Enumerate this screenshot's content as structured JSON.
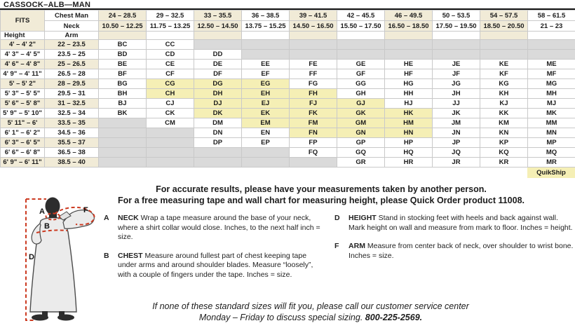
{
  "title": "CASSOCK–ALB—MAN",
  "table": {
    "fits_label": "FITS",
    "chest_label": "Chest Man",
    "neck_label": "Neck",
    "height_label": "Height",
    "arm_label": "Arm",
    "chest_ranges": [
      "24 – 28.5",
      "29 – 32.5",
      "33 – 35.5",
      "36 – 38.5",
      "39 – 41.5",
      "42 – 45.5",
      "46 – 49.5",
      "50 – 53.5",
      "54 – 57.5",
      "58 – 61.5"
    ],
    "neck_ranges": [
      "10.50 – 12.25",
      "11.75 – 13.25",
      "12.50 – 14.50",
      "13.75 – 15.25",
      "14.50 – 16.50",
      "15.50 – 17.50",
      "16.50 – 18.50",
      "17.50 – 19.50",
      "18.50 – 20.50",
      "21 – 23"
    ],
    "rows": [
      {
        "height": "4' – 4' 2\"",
        "arm": "22 – 23.5",
        "codes": [
          "BC",
          "CC",
          "",
          "",
          "",
          "",
          "",
          "",
          "",
          ""
        ],
        "states": "..gggggggg"
      },
      {
        "height": "4' 3\" – 4' 5\"",
        "arm": "23.5 – 25",
        "codes": [
          "BD",
          "CD",
          "DD",
          "",
          "",
          "",
          "",
          "",
          "",
          ""
        ],
        "states": "...ggggggg"
      },
      {
        "height": "4' 6\" – 4' 8\"",
        "arm": "25 – 26.5",
        "codes": [
          "BE",
          "CE",
          "DE",
          "EE",
          "FE",
          "GE",
          "HE",
          "JE",
          "KE",
          "ME"
        ],
        "states": ".........."
      },
      {
        "height": "4' 9\" – 4' 11\"",
        "arm": "26.5 – 28",
        "codes": [
          "BF",
          "CF",
          "DF",
          "EF",
          "FF",
          "GF",
          "HF",
          "JF",
          "KF",
          "MF"
        ],
        "states": ".........."
      },
      {
        "height": "5' – 5' 2\"",
        "arm": "28 – 29.5",
        "codes": [
          "BG",
          "CG",
          "DG",
          "EG",
          "FG",
          "GG",
          "HG",
          "JG",
          "KG",
          "MG"
        ],
        "states": ".yyy......"
      },
      {
        "height": "5' 3\" – 5' 5\"",
        "arm": "29.5 – 31",
        "codes": [
          "BH",
          "CH",
          "DH",
          "EH",
          "FH",
          "GH",
          "HH",
          "JH",
          "KH",
          "MH"
        ],
        "states": ".yyyy....."
      },
      {
        "height": "5' 6\" – 5' 8\"",
        "arm": "31 – 32.5",
        "codes": [
          "BJ",
          "CJ",
          "DJ",
          "EJ",
          "FJ",
          "GJ",
          "HJ",
          "JJ",
          "KJ",
          "MJ"
        ],
        "states": "..yyyy...."
      },
      {
        "height": "5' 9\" – 5' 10\"",
        "arm": "32.5 – 34",
        "codes": [
          "BK",
          "CK",
          "DK",
          "EK",
          "FK",
          "GK",
          "HK",
          "JK",
          "KK",
          "MK"
        ],
        "states": "..yyyyy..."
      },
      {
        "height": "5' 11\" – 6'",
        "arm": "33.5 – 35",
        "codes": [
          "",
          "CM",
          "DM",
          "EM",
          "FM",
          "GM",
          "HM",
          "JM",
          "KM",
          "MM"
        ],
        "states": "g..yyyy..."
      },
      {
        "height": "6' 1\" – 6' 2\"",
        "arm": "34.5 – 36",
        "codes": [
          "",
          "",
          "DN",
          "EN",
          "FN",
          "GN",
          "HN",
          "JN",
          "KN",
          "MN"
        ],
        "states": "gg..yyy..."
      },
      {
        "height": "6' 3\" – 6' 5\"",
        "arm": "35.5 – 37",
        "codes": [
          "",
          "",
          "DP",
          "EP",
          "FP",
          "GP",
          "HP",
          "JP",
          "KP",
          "MP"
        ],
        "states": "gg........"
      },
      {
        "height": "6' 6\" – 6' 8\"",
        "arm": "36.5 – 38",
        "codes": [
          "",
          "",
          "",
          "",
          "FQ",
          "GQ",
          "HQ",
          "JQ",
          "KQ",
          "MQ"
        ],
        "states": "gggg......"
      },
      {
        "height": "6' 9\" – 6' 11\"",
        "arm": "38.5 – 40",
        "codes": [
          "",
          "",
          "",
          "",
          "",
          "GR",
          "HR",
          "JR",
          "KR",
          "MR"
        ],
        "states": "ggggg....."
      }
    ],
    "quickship_label": "QuikShip"
  },
  "notes": {
    "line1": "For accurate results, please have your measurements taken by another person.",
    "line2": "For a free measuring tape and wall chart for measuring height, please Quick Order product 11008."
  },
  "definitions": [
    {
      "letter": "A",
      "term": "NECK",
      "text": "  Wrap a tape measure around the base of your neck, where a shirt collar would close. Inches, to the next half inch = size."
    },
    {
      "letter": "B",
      "term": "CHEST",
      "text": " Measure around fullest part of chest keeping tape under arms and around shoulder blades. Measure “loosely”, with a couple of fingers under the tape. Inches = size."
    },
    {
      "letter": "D",
      "term": "HEIGHT",
      "text": " Stand in stocking feet with heels and back against wall. Mark height on wall and measure from mark to floor. Inches = height."
    },
    {
      "letter": "F",
      "term": "ARM",
      "text": " Measure from center back of neck, over shoulder to wrist bone. Inches = size."
    }
  ],
  "figure": {
    "label_a": "A",
    "label_b": "B",
    "label_d": "D",
    "label_f": "F"
  },
  "footer": {
    "line1": "If none of these standard sizes will fit you, please call our customer service center",
    "line2_prefix": "Monday – Friday to discuss special sizing. ",
    "phone": "800-225-2569."
  },
  "colors": {
    "tan": "#f1ebd7",
    "quickship_yellow": "#f5efb5",
    "unavailable_gray": "#dadada",
    "measure_red": "#cc3b22"
  }
}
